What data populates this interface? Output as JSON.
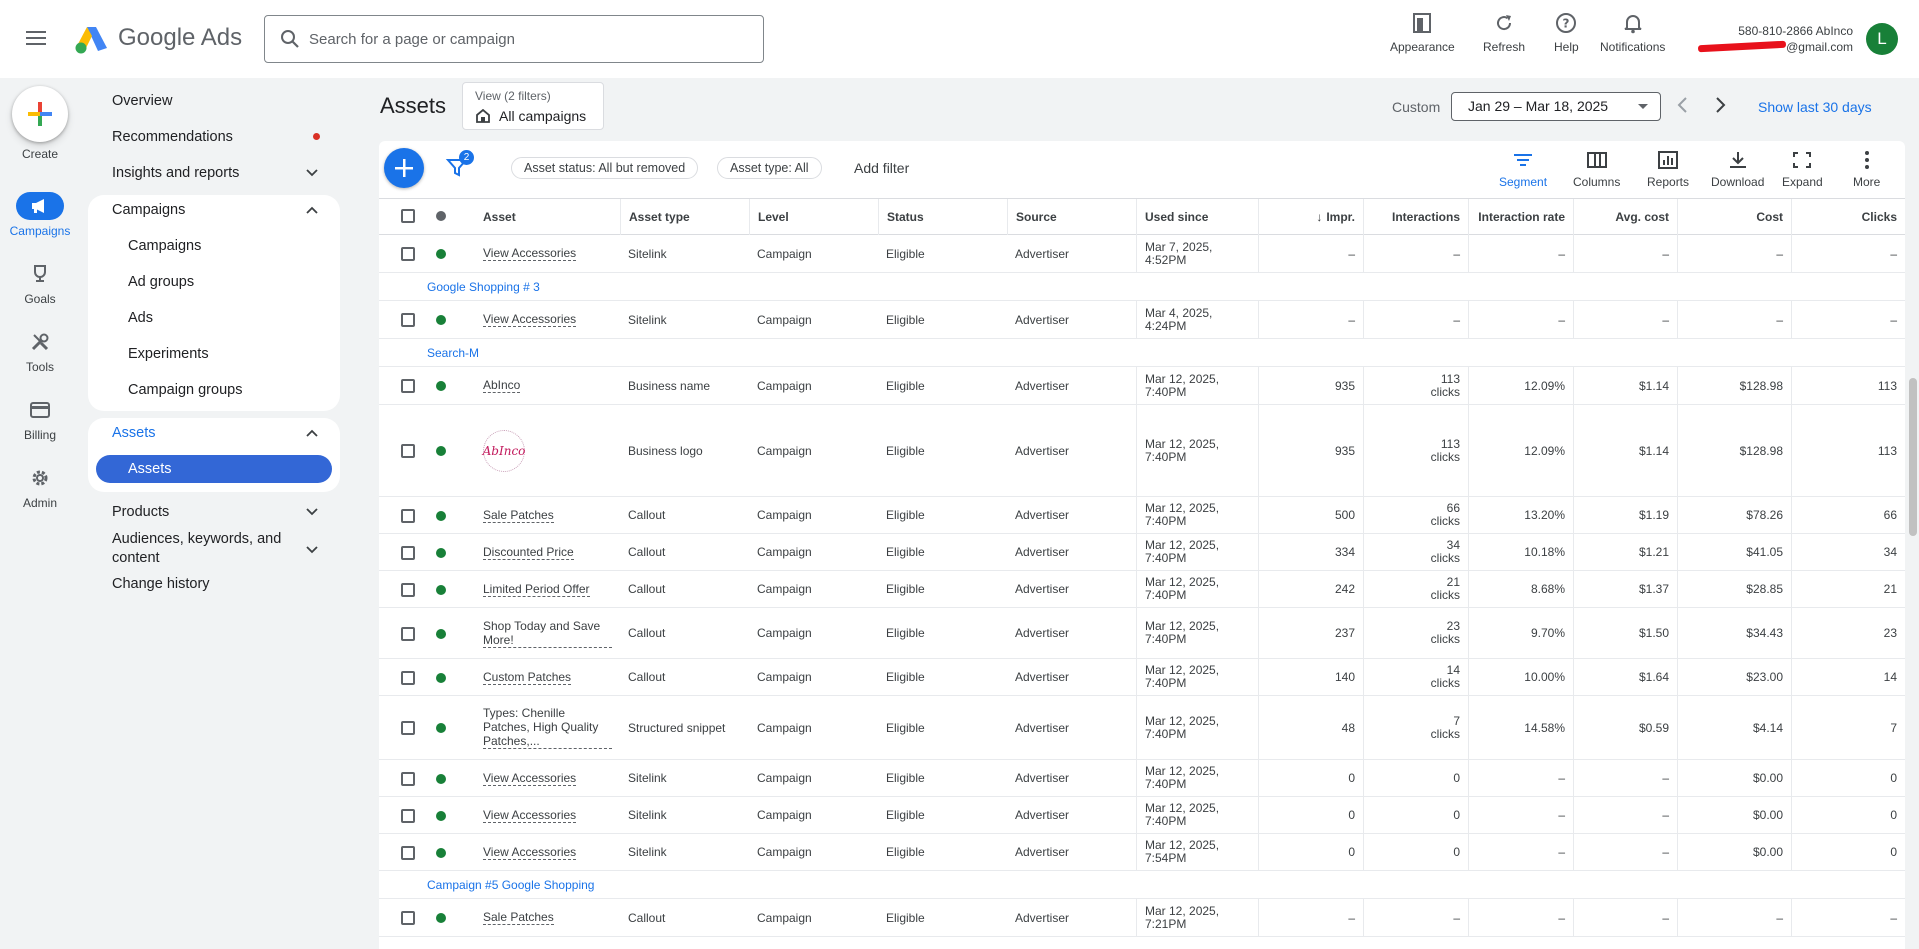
{
  "header": {
    "brand": "Google Ads",
    "search_placeholder": "Search for a page or campaign",
    "buttons": {
      "appearance": "Appearance",
      "refresh": "Refresh",
      "help": "Help",
      "notifications": "Notifications"
    },
    "account_name": "580-810-2866 AbInco",
    "account_email": "@gmail.com",
    "avatar_letter": "L"
  },
  "rail": {
    "create": "Create",
    "campaigns": "Campaigns",
    "goals": "Goals",
    "tools": "Tools",
    "billing": "Billing",
    "admin": "Admin"
  },
  "nav": {
    "overview": "Overview",
    "recommendations": "Recommendations",
    "insights": "Insights and reports",
    "campaigns_section": "Campaigns",
    "campaigns": "Campaigns",
    "ad_groups": "Ad groups",
    "ads": "Ads",
    "experiments": "Experiments",
    "campaign_groups": "Campaign groups",
    "assets_section": "Assets",
    "assets": "Assets",
    "products": "Products",
    "audiences": "Audiences, keywords, and content",
    "change_history": "Change history"
  },
  "page": {
    "title": "Assets",
    "view_top": "View (2 filters)",
    "view_bottom": "All campaigns",
    "custom": "Custom",
    "date_range": "Jan 29 – Mar 18, 2025",
    "show_last": "Show last 30 days"
  },
  "toolbar": {
    "filter_count": "2",
    "chip_status": "Asset status: All but removed",
    "chip_type": "Asset type: All",
    "add_filter": "Add filter",
    "segment": "Segment",
    "columns": "Columns",
    "reports": "Reports",
    "download": "Download",
    "expand": "Expand",
    "more": "More"
  },
  "table": {
    "headers": {
      "asset": "Asset",
      "asset_type": "Asset type",
      "level": "Level",
      "status": "Status",
      "source": "Source",
      "used_since": "Used since",
      "impr": "Impr.",
      "interactions": "Interactions",
      "interaction_rate": "Interaction rate",
      "avg_cost": "Avg. cost",
      "cost": "Cost",
      "clicks": "Clicks"
    },
    "clicks_unit": "clicks",
    "logo_text": "AbInco",
    "items": [
      {
        "kind": "row",
        "asset": "View Accessories",
        "type": "Sitelink",
        "level": "Campaign",
        "status": "Eligible",
        "source": "Advertiser",
        "used_since": [
          "Mar 7, 2025,",
          "4:52PM"
        ],
        "impr": "–",
        "inter": "–",
        "inter_unit": false,
        "rate": "–",
        "avg": "–",
        "cost": "–",
        "clicks": "–"
      },
      {
        "kind": "group",
        "name": "Google Shopping # 3"
      },
      {
        "kind": "row",
        "asset": "View Accessories",
        "type": "Sitelink",
        "level": "Campaign",
        "status": "Eligible",
        "source": "Advertiser",
        "used_since": [
          "Mar 4, 2025,",
          "4:24PM"
        ],
        "impr": "–",
        "inter": "–",
        "inter_unit": false,
        "rate": "–",
        "avg": "–",
        "cost": "–",
        "clicks": "–"
      },
      {
        "kind": "group",
        "name": "Search-M"
      },
      {
        "kind": "row",
        "asset": "AbInco",
        "type": "Business name",
        "level": "Campaign",
        "status": "Eligible",
        "source": "Advertiser",
        "used_since": [
          "Mar 12, 2025,",
          "7:40PM"
        ],
        "impr": "935",
        "inter": "113",
        "inter_unit": true,
        "rate": "12.09%",
        "avg": "$1.14",
        "cost": "$128.98",
        "clicks": "113"
      },
      {
        "kind": "row",
        "logo": true,
        "asset": "",
        "type": "Business logo",
        "level": "Campaign",
        "status": "Eligible",
        "source": "Advertiser",
        "used_since": [
          "Mar 12, 2025,",
          "7:40PM"
        ],
        "impr": "935",
        "inter": "113",
        "inter_unit": true,
        "rate": "12.09%",
        "avg": "$1.14",
        "cost": "$128.98",
        "clicks": "113"
      },
      {
        "kind": "row",
        "asset": "Sale Patches",
        "type": "Callout",
        "level": "Campaign",
        "status": "Eligible",
        "source": "Advertiser",
        "used_since": [
          "Mar 12, 2025,",
          "7:40PM"
        ],
        "impr": "500",
        "inter": "66",
        "inter_unit": true,
        "rate": "13.20%",
        "avg": "$1.19",
        "cost": "$78.26",
        "clicks": "66"
      },
      {
        "kind": "row",
        "asset": "Discounted Price",
        "type": "Callout",
        "level": "Campaign",
        "status": "Eligible",
        "source": "Advertiser",
        "used_since": [
          "Mar 12, 2025,",
          "7:40PM"
        ],
        "impr": "334",
        "inter": "34",
        "inter_unit": true,
        "rate": "10.18%",
        "avg": "$1.21",
        "cost": "$41.05",
        "clicks": "34"
      },
      {
        "kind": "row",
        "asset": "Limited Period Offer",
        "type": "Callout",
        "level": "Campaign",
        "status": "Eligible",
        "source": "Advertiser",
        "used_since": [
          "Mar 12, 2025,",
          "7:40PM"
        ],
        "impr": "242",
        "inter": "21",
        "inter_unit": true,
        "rate": "8.68%",
        "avg": "$1.37",
        "cost": "$28.85",
        "clicks": "21"
      },
      {
        "kind": "row",
        "asset": "Shop Today and Save More!",
        "type": "Callout",
        "level": "Campaign",
        "status": "Eligible",
        "source": "Advertiser",
        "used_since": [
          "Mar 12, 2025,",
          "7:40PM"
        ],
        "impr": "237",
        "inter": "23",
        "inter_unit": true,
        "rate": "9.70%",
        "avg": "$1.50",
        "cost": "$34.43",
        "clicks": "23"
      },
      {
        "kind": "row",
        "asset": "Custom Patches",
        "type": "Callout",
        "level": "Campaign",
        "status": "Eligible",
        "source": "Advertiser",
        "used_since": [
          "Mar 12, 2025,",
          "7:40PM"
        ],
        "impr": "140",
        "inter": "14",
        "inter_unit": true,
        "rate": "10.00%",
        "avg": "$1.64",
        "cost": "$23.00",
        "clicks": "14"
      },
      {
        "kind": "row",
        "asset": "Types: Chenille Patches, High Quality Patches,...",
        "type": "Structured snippet",
        "level": "Campaign",
        "status": "Eligible",
        "source": "Advertiser",
        "used_since": [
          "Mar 12, 2025,",
          "7:40PM"
        ],
        "impr": "48",
        "inter": "7",
        "inter_unit": true,
        "rate": "14.58%",
        "avg": "$0.59",
        "cost": "$4.14",
        "clicks": "7"
      },
      {
        "kind": "row",
        "asset": "View Accessories",
        "type": "Sitelink",
        "level": "Campaign",
        "status": "Eligible",
        "source": "Advertiser",
        "used_since": [
          "Mar 12, 2025,",
          "7:40PM"
        ],
        "impr": "0",
        "inter": "0",
        "inter_unit": false,
        "rate": "–",
        "avg": "–",
        "cost": "$0.00",
        "clicks": "0"
      },
      {
        "kind": "row",
        "asset": "View Accessories",
        "type": "Sitelink",
        "level": "Campaign",
        "status": "Eligible",
        "source": "Advertiser",
        "used_since": [
          "Mar 12, 2025,",
          "7:40PM"
        ],
        "impr": "0",
        "inter": "0",
        "inter_unit": false,
        "rate": "–",
        "avg": "–",
        "cost": "$0.00",
        "clicks": "0"
      },
      {
        "kind": "row",
        "asset": "View Accessories",
        "type": "Sitelink",
        "level": "Campaign",
        "status": "Eligible",
        "source": "Advertiser",
        "used_since": [
          "Mar 12, 2025,",
          "7:54PM"
        ],
        "impr": "0",
        "inter": "0",
        "inter_unit": false,
        "rate": "–",
        "avg": "–",
        "cost": "$0.00",
        "clicks": "0"
      },
      {
        "kind": "group",
        "name": "Campaign #5 Google Shopping"
      },
      {
        "kind": "row",
        "asset": "Sale Patches",
        "type": "Callout",
        "level": "Campaign",
        "status": "Eligible",
        "source": "Advertiser",
        "used_since": [
          "Mar 12, 2025,",
          "7:21PM"
        ],
        "impr": "–",
        "inter": "–",
        "inter_unit": false,
        "rate": "–",
        "avg": "–",
        "cost": "–",
        "clicks": "–"
      }
    ]
  },
  "colors": {
    "accent": "#1a73e8",
    "nav_active": "#3367d6",
    "status_green": "#188038",
    "notification_red": "#d93025"
  }
}
